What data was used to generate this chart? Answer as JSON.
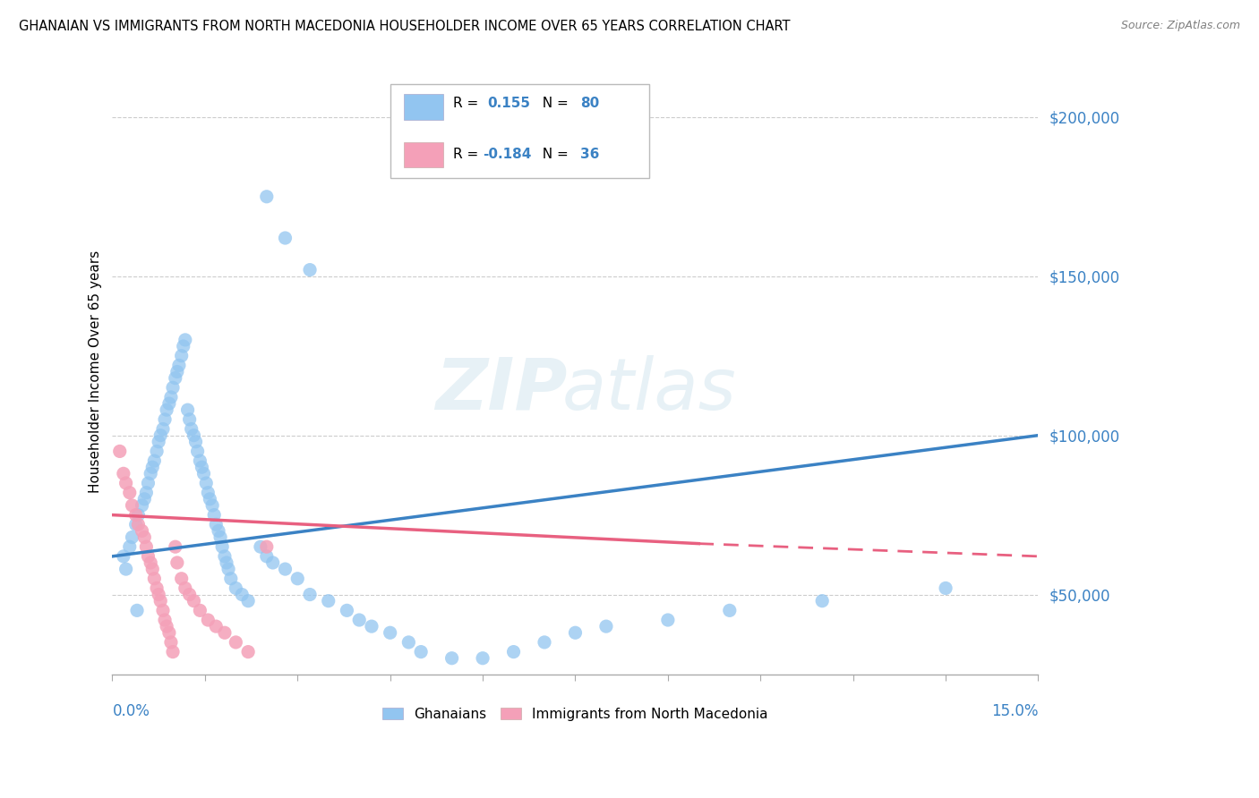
{
  "title": "GHANAIAN VS IMMIGRANTS FROM NORTH MACEDONIA HOUSEHOLDER INCOME OVER 65 YEARS CORRELATION CHART",
  "source": "Source: ZipAtlas.com",
  "ylabel": "Householder Income Over 65 years",
  "xlim": [
    0.0,
    15.0
  ],
  "ylim": [
    25000,
    215000
  ],
  "yticks": [
    50000,
    100000,
    150000,
    200000
  ],
  "ytick_labels": [
    "$50,000",
    "$100,000",
    "$150,000",
    "$200,000"
  ],
  "watermark_zip": "ZIP",
  "watermark_atlas": "atlas",
  "color_blue": "#92C5F0",
  "color_pink": "#F4A0B8",
  "color_blue_line": "#3B82C4",
  "color_pink_line": "#E86080",
  "color_blue_text": "#3B82C4",
  "scatter_ghanaians_x": [
    0.18,
    0.22,
    0.28,
    0.32,
    0.38,
    0.42,
    0.48,
    0.52,
    0.55,
    0.58,
    0.62,
    0.65,
    0.68,
    0.72,
    0.75,
    0.78,
    0.82,
    0.85,
    0.88,
    0.92,
    0.95,
    0.98,
    1.02,
    1.05,
    1.08,
    1.12,
    1.15,
    1.18,
    1.22,
    1.25,
    1.28,
    1.32,
    1.35,
    1.38,
    1.42,
    1.45,
    1.48,
    1.52,
    1.55,
    1.58,
    1.62,
    1.65,
    1.68,
    1.72,
    1.75,
    1.78,
    1.82,
    1.85,
    1.88,
    1.92,
    2.0,
    2.1,
    2.2,
    2.4,
    2.5,
    2.6,
    2.8,
    3.0,
    3.2,
    3.5,
    3.8,
    4.0,
    4.2,
    4.5,
    4.8,
    5.0,
    5.5,
    6.0,
    6.5,
    7.0,
    7.5,
    8.0,
    9.0,
    10.0,
    11.5,
    13.5,
    2.5,
    2.8,
    3.2,
    0.4
  ],
  "scatter_ghanaians_y": [
    62000,
    58000,
    65000,
    68000,
    72000,
    75000,
    78000,
    80000,
    82000,
    85000,
    88000,
    90000,
    92000,
    95000,
    98000,
    100000,
    102000,
    105000,
    108000,
    110000,
    112000,
    115000,
    118000,
    120000,
    122000,
    125000,
    128000,
    130000,
    108000,
    105000,
    102000,
    100000,
    98000,
    95000,
    92000,
    90000,
    88000,
    85000,
    82000,
    80000,
    78000,
    75000,
    72000,
    70000,
    68000,
    65000,
    62000,
    60000,
    58000,
    55000,
    52000,
    50000,
    48000,
    65000,
    62000,
    60000,
    58000,
    55000,
    50000,
    48000,
    45000,
    42000,
    40000,
    38000,
    35000,
    32000,
    30000,
    30000,
    32000,
    35000,
    38000,
    40000,
    42000,
    45000,
    48000,
    52000,
    175000,
    162000,
    152000,
    45000
  ],
  "scatter_macedonia_x": [
    0.12,
    0.18,
    0.22,
    0.28,
    0.32,
    0.38,
    0.42,
    0.48,
    0.52,
    0.55,
    0.58,
    0.62,
    0.65,
    0.68,
    0.72,
    0.75,
    0.78,
    0.82,
    0.85,
    0.88,
    0.92,
    0.95,
    0.98,
    1.02,
    1.05,
    1.12,
    1.18,
    1.25,
    1.32,
    1.42,
    1.55,
    1.68,
    1.82,
    2.0,
    2.2,
    2.5
  ],
  "scatter_macedonia_y": [
    95000,
    88000,
    85000,
    82000,
    78000,
    75000,
    72000,
    70000,
    68000,
    65000,
    62000,
    60000,
    58000,
    55000,
    52000,
    50000,
    48000,
    45000,
    42000,
    40000,
    38000,
    35000,
    32000,
    65000,
    60000,
    55000,
    52000,
    50000,
    48000,
    45000,
    42000,
    40000,
    38000,
    35000,
    32000,
    65000
  ]
}
